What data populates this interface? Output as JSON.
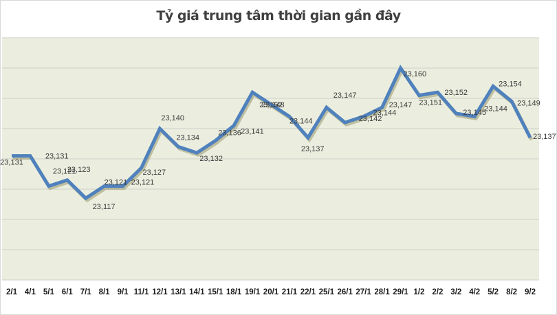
{
  "chart_data": {
    "type": "line",
    "title": "Tỷ giá trung tâm thời gian gần đây",
    "xlabel": "",
    "ylabel": "",
    "ylim": [
      23090,
      23170
    ],
    "ytick_step": 10,
    "y_axis_labels_visible": false,
    "grid": true,
    "legend": null,
    "categories": [
      "2/1",
      "4/1",
      "5/1",
      "6/1",
      "7/1",
      "8/1",
      "9/1",
      "11/1",
      "12/1",
      "13/1",
      "14/1",
      "15/1",
      "18/1",
      "19/1",
      "20/1",
      "21/1",
      "22/1",
      "25/1",
      "26/1",
      "27/1",
      "28/1",
      "29/1",
      "1/2",
      "2/2",
      "3/2",
      "4/2",
      "5/2",
      "8/2",
      "9/2"
    ],
    "series": [
      {
        "name": "Tỷ giá trung tâm",
        "color": "#4F81BD",
        "values": [
          23131,
          23131,
          23121,
          23123,
          23117,
          23121,
          23121,
          23127,
          23140,
          23134,
          23132,
          23136,
          23141,
          23152,
          23148,
          23144,
          23137,
          23147,
          23142,
          23144,
          23147,
          23160,
          23151,
          23152,
          23145,
          23144,
          23154,
          23149,
          23137
        ]
      }
    ],
    "data_labels": [
      "23,131",
      "23,131",
      "23,121",
      "23,123",
      "23,117",
      "23,121",
      "23,121",
      "23,127",
      "23,140",
      "23,134",
      "23,132",
      "23,136",
      "23,141",
      "23,152",
      "23,148",
      "23,144",
      "23,137",
      "23,147",
      "23,142",
      "23,144",
      "23,147",
      "23,160",
      "23,151",
      "23,152",
      "23,145",
      "23,144",
      "23,154",
      "23,149",
      "23,137"
    ]
  },
  "colors": {
    "plot_background": "#EBEEDF",
    "gridline": "#D4D6CC",
    "line": "#4F81BD",
    "title": "#404040"
  }
}
